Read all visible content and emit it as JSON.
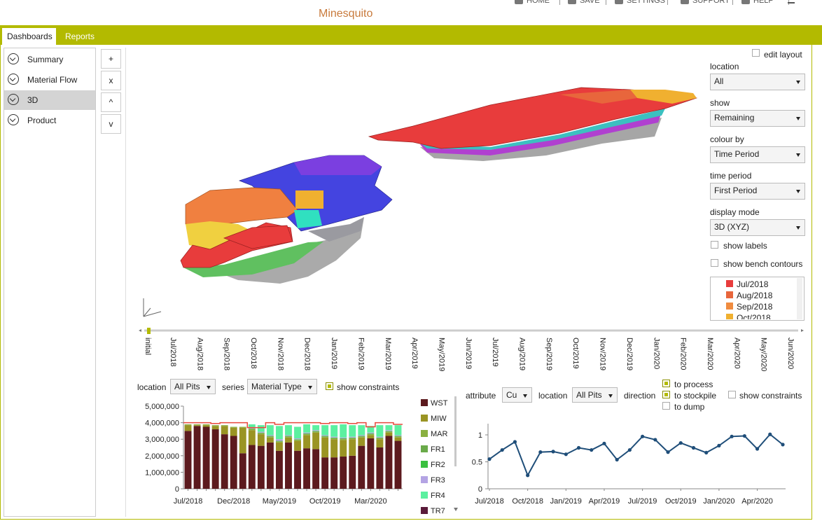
{
  "header": {
    "title": "Minesquito",
    "nav": [
      "HOME",
      "SAVE",
      "SETTINGS",
      "SUPPORT",
      "HELP"
    ]
  },
  "tabs": [
    "Dashboards",
    "Reports"
  ],
  "sidebar": [
    "Summary",
    "Material Flow",
    "3D",
    "Product"
  ],
  "tools": [
    "+",
    "x",
    "^",
    "v"
  ],
  "panel": {
    "edit_layout": "edit layout",
    "fields": [
      {
        "label": "location",
        "value": "All"
      },
      {
        "label": "show",
        "value": "Remaining"
      },
      {
        "label": "colour by",
        "value": "Time Period"
      },
      {
        "label": "time period",
        "value": "First Period"
      },
      {
        "label": "display mode",
        "value": "3D (XYZ)"
      }
    ],
    "checkboxes": [
      "show labels",
      "show bench contours"
    ],
    "legend": [
      {
        "label": "Jul/2018",
        "color": "#e83c3c"
      },
      {
        "label": "Aug/2018",
        "color": "#e8663c"
      },
      {
        "label": "Sep/2018",
        "color": "#f08c40"
      },
      {
        "label": "Oct/2018",
        "color": "#f0b030"
      }
    ]
  },
  "timeline": [
    "initial",
    "Jul/2018",
    "Aug/2018",
    "Sep/2018",
    "Oct/2018",
    "Nov/2018",
    "Dec/2018",
    "Jan/2019",
    "Feb/2019",
    "Mar/2019",
    "Apr/2019",
    "May/2019",
    "Jun/2019",
    "Jul/2019",
    "Aug/2019",
    "Sep/2019",
    "Oct/2019",
    "Nov/2019",
    "Dec/2019",
    "Jan/2020",
    "Feb/2020",
    "Mar/2020",
    "Apr/2020",
    "May/2020",
    "Jun/2020"
  ],
  "bar_controls": {
    "location_label": "location",
    "location": "All Pits",
    "series_label": "series",
    "series": "Material Type",
    "constraints": {
      "label": "show constraints",
      "checked": true
    }
  },
  "line_controls": {
    "attribute_label": "attribute",
    "attribute": "Cu",
    "location_label": "location",
    "location": "All Pits",
    "direction_label": "direction",
    "directions": [
      {
        "label": "to process",
        "checked": true
      },
      {
        "label": "to stockpile",
        "checked": true
      },
      {
        "label": "to dump",
        "checked": false
      }
    ],
    "constraints": {
      "label": "show constraints",
      "checked": false
    }
  },
  "chart_data": [
    {
      "type": "stacked_bar",
      "categories": [
        "Jul/2018",
        null,
        null,
        null,
        null,
        "Dec/2018",
        null,
        null,
        null,
        null,
        "May/2019",
        null,
        null,
        null,
        null,
        "Oct/2019",
        null,
        null,
        null,
        null,
        "Mar/2020",
        null,
        null,
        null
      ],
      "ylim": [
        0,
        5000000
      ],
      "yticks": [
        {
          "value": 0,
          "label": "0"
        },
        {
          "value": 1000000,
          "label": "1,000,000"
        },
        {
          "value": 2000000,
          "label": "2,000,000"
        },
        {
          "value": 3000000,
          "label": "3,000,000"
        },
        {
          "value": 4000000,
          "label": "4,000,000"
        },
        {
          "value": 5000000,
          "label": "5,000,000"
        }
      ],
      "limit": [
        4000000,
        4000000,
        4000000,
        3950000,
        4000000,
        4000000,
        4000000,
        3700000,
        3700000,
        4000000,
        3900000,
        4000000,
        4000000,
        4000000,
        4000000,
        3950000,
        4000000,
        4000000,
        3950000,
        4000000,
        3750000,
        4000000,
        4000000,
        3900000
      ],
      "limit_color": "#e8483c",
      "series": [
        {
          "name": "WST",
          "color": "#5c1a1e",
          "values": [
            3500000,
            3800000,
            3750000,
            3600000,
            3300000,
            3200000,
            2150000,
            2650000,
            2600000,
            2800000,
            2300000,
            2800000,
            2300000,
            2450000,
            2400000,
            1900000,
            1900000,
            1950000,
            2000000,
            2600000,
            3050000,
            2500000,
            3200000,
            2900000
          ]
        },
        {
          "name": "MIW",
          "color": "#9a9424",
          "values": [
            350000,
            50000,
            100000,
            200000,
            500000,
            500000,
            1550000,
            900000,
            700000,
            300000,
            500000,
            300000,
            600000,
            800000,
            1000000,
            1200000,
            1100000,
            1000000,
            1000000,
            500000,
            200000,
            500000,
            200000,
            200000
          ]
        },
        {
          "name": "MAR",
          "color": "#8ab040",
          "values": [
            50000,
            50000,
            50000,
            50000,
            50000,
            50000,
            50000,
            50000,
            50000,
            50000,
            50000,
            50000,
            50000,
            50000,
            50000,
            50000,
            50000,
            50000,
            50000,
            50000,
            50000,
            50000,
            50000,
            50000
          ]
        },
        {
          "name": "FR1",
          "color": "#6aaa4a",
          "values": [
            0,
            0,
            0,
            0,
            0,
            0,
            0,
            30000,
            30000,
            30000,
            30000,
            30000,
            30000,
            30000,
            30000,
            30000,
            30000,
            30000,
            30000,
            30000,
            30000,
            30000,
            30000,
            30000
          ]
        },
        {
          "name": "FR2",
          "color": "#3ac040",
          "values": [
            0,
            0,
            0,
            0,
            0,
            0,
            0,
            20000,
            20000,
            20000,
            20000,
            20000,
            20000,
            20000,
            20000,
            20000,
            20000,
            20000,
            20000,
            20000,
            20000,
            20000,
            20000,
            20000
          ]
        },
        {
          "name": "FR3",
          "color": "#b4a4e4",
          "values": [
            0,
            0,
            0,
            0,
            0,
            0,
            0,
            50000,
            50000,
            50000,
            100000,
            50000,
            50000,
            50000,
            50000,
            50000,
            50000,
            50000,
            50000,
            50000,
            50000,
            50000,
            50000,
            50000
          ]
        },
        {
          "name": "FR4",
          "color": "#5cf0a0",
          "values": [
            0,
            0,
            0,
            0,
            0,
            0,
            0,
            200000,
            400000,
            600000,
            800000,
            600000,
            700000,
            500000,
            300000,
            600000,
            700000,
            800000,
            700000,
            600000,
            400000,
            700000,
            300000,
            600000
          ]
        },
        {
          "name": "TR7",
          "color": "#5a1a3a",
          "values": [
            0,
            0,
            0,
            0,
            0,
            0,
            0,
            0,
            0,
            0,
            0,
            0,
            0,
            0,
            0,
            0,
            0,
            0,
            0,
            0,
            0,
            0,
            0,
            0
          ]
        }
      ]
    },
    {
      "type": "line",
      "categories": [
        "Jul/2018",
        null,
        null,
        "Oct/2018",
        null,
        null,
        "Jan/2019",
        null,
        null,
        "Apr/2019",
        null,
        null,
        "Jul/2019",
        null,
        null,
        "Oct/2019",
        null,
        null,
        "Jan/2020",
        null,
        null,
        "Apr/2020",
        null,
        null
      ],
      "ylim": [
        0,
        1.1
      ],
      "yticks": [
        0,
        0.5,
        1
      ],
      "color": "#1f4e79",
      "values": [
        0.55,
        0.72,
        0.87,
        0.25,
        0.68,
        0.69,
        0.64,
        0.76,
        0.72,
        0.84,
        0.54,
        0.72,
        0.97,
        0.91,
        0.68,
        0.85,
        0.76,
        0.67,
        0.8,
        0.97,
        0.98,
        0.74,
        1.01,
        0.82
      ]
    }
  ]
}
